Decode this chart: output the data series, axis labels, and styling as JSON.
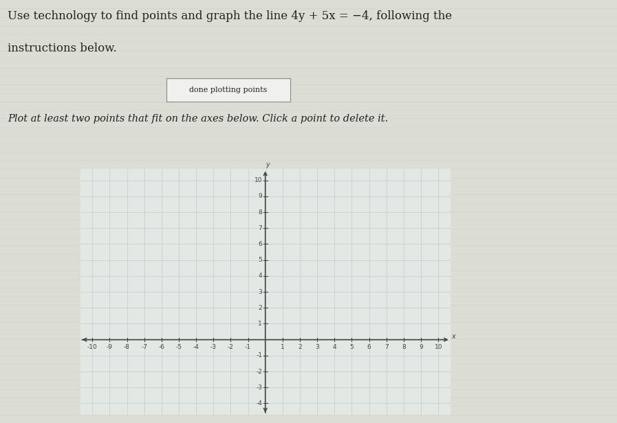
{
  "title_line1": "Use technology to find points and graph the line 4y + 5x = −4, following the",
  "title_line2": "instructions below.",
  "button_text": "done plotting points",
  "subtitle": "Plot at least two points that fit on the axes below. Click a point to delete it.",
  "xmin": -10,
  "xmax": 10,
  "ymin": -4,
  "ymax": 10,
  "xtick_labels": [
    "-10",
    "-9",
    "-8",
    "-7",
    "-6",
    "-5",
    "-4",
    "-3",
    "-2",
    "-1",
    "1",
    "2",
    "3",
    "4",
    "5",
    "6",
    "7",
    "8",
    "9",
    "10"
  ],
  "xtick_vals": [
    -10,
    -9,
    -8,
    -7,
    -6,
    -5,
    -4,
    -3,
    -2,
    -1,
    1,
    2,
    3,
    4,
    5,
    6,
    7,
    8,
    9,
    10
  ],
  "ytick_labels": [
    "-4",
    "-3",
    "-2",
    "-1",
    "1",
    "2",
    "3",
    "4",
    "5",
    "6",
    "7",
    "8",
    "9",
    "10"
  ],
  "ytick_vals": [
    -4,
    -3,
    -2,
    -1,
    1,
    2,
    3,
    4,
    5,
    6,
    7,
    8,
    9,
    10
  ],
  "bg_color": "#dcddd5",
  "grid_bg_color": "#e2e8e4",
  "grid_color": "#b8c4cc",
  "axis_color": "#444444",
  "text_color": "#222222",
  "button_bg": "#f0f0ee",
  "button_border": "#888888",
  "font_size_title": 12,
  "font_size_subtitle": 10.5,
  "font_size_button": 8,
  "font_size_ticks": 6.5,
  "xlabel": "x",
  "ylabel": "y",
  "line_stripe_color": "#d0d4cc",
  "line_stripe_alpha": 0.5
}
